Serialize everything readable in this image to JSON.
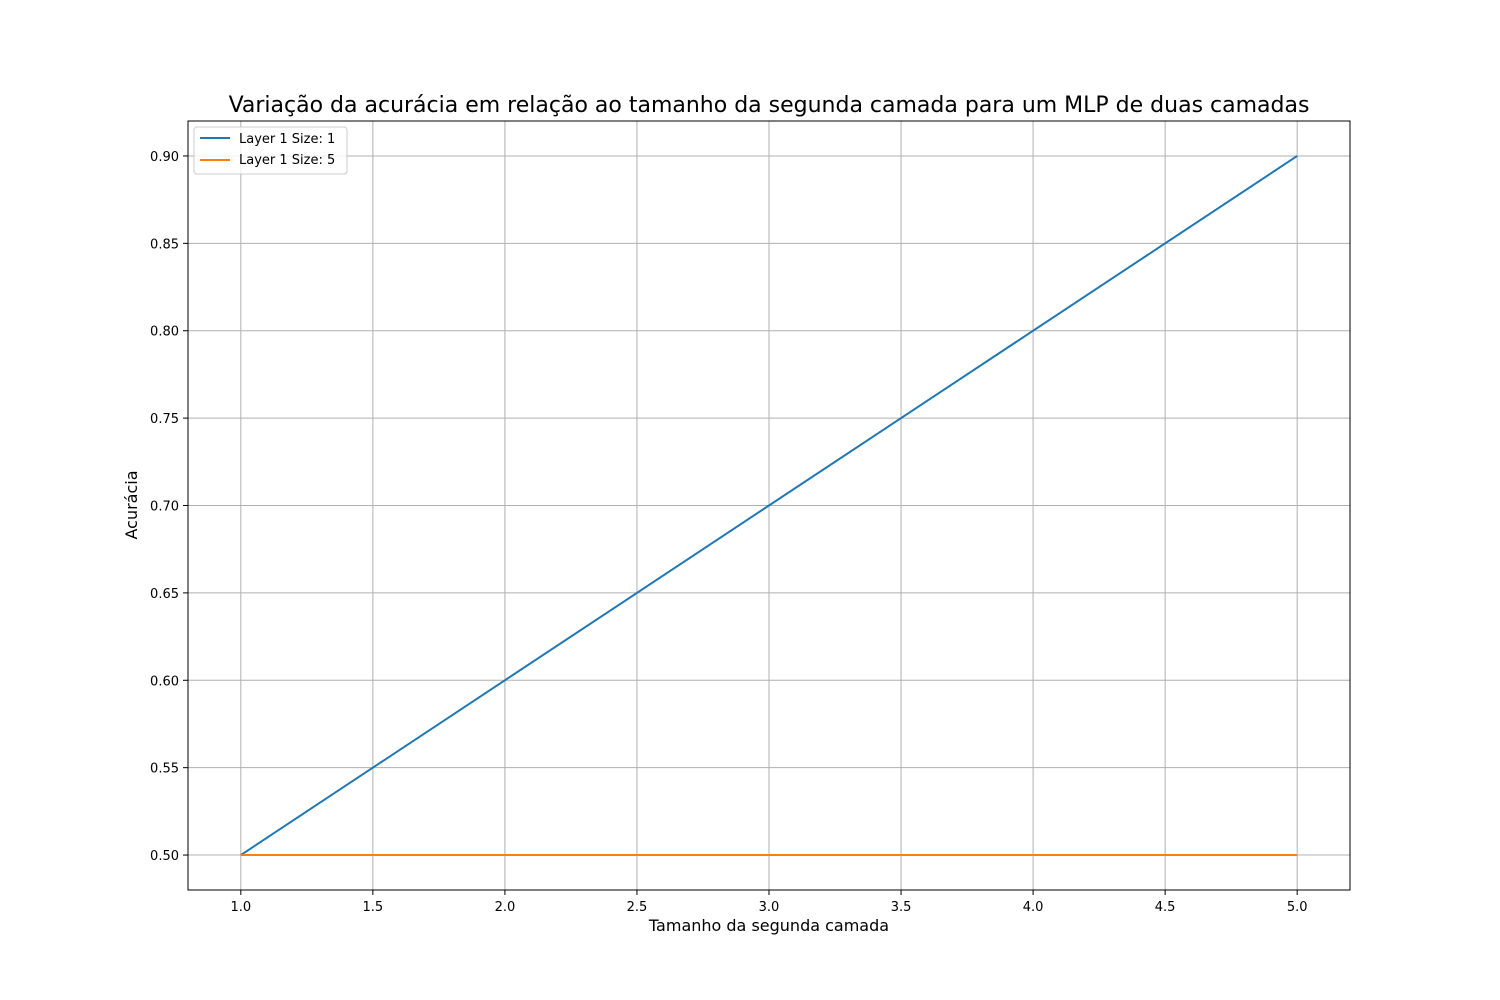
{
  "chart_data": {
    "type": "line",
    "title": "Variação da acurácia em relação ao tamanho da segunda camada para um MLP de duas camadas",
    "xlabel": "Tamanho da segunda camada",
    "ylabel": "Acurácia",
    "xlim": [
      0.8,
      5.2
    ],
    "ylim": [
      0.48,
      0.92
    ],
    "xticks": [
      1.0,
      1.5,
      2.0,
      2.5,
      3.0,
      3.5,
      4.0,
      4.5,
      5.0
    ],
    "xtick_labels": [
      "1.0",
      "1.5",
      "2.0",
      "2.5",
      "3.0",
      "3.5",
      "4.0",
      "4.5",
      "5.0"
    ],
    "yticks": [
      0.5,
      0.55,
      0.6,
      0.65,
      0.7,
      0.75,
      0.8,
      0.85,
      0.9
    ],
    "ytick_labels": [
      "0.50",
      "0.55",
      "0.60",
      "0.65",
      "0.70",
      "0.75",
      "0.80",
      "0.85",
      "0.90"
    ],
    "grid": true,
    "legend_position": "top-left",
    "series": [
      {
        "name": "Layer 1 Size: 1",
        "color": "#1f77b4",
        "x": [
          1,
          5
        ],
        "y": [
          0.5,
          0.9
        ]
      },
      {
        "name": "Layer 1 Size: 5",
        "color": "#ff7f0e",
        "x": [
          1,
          5
        ],
        "y": [
          0.5,
          0.5
        ]
      }
    ]
  }
}
